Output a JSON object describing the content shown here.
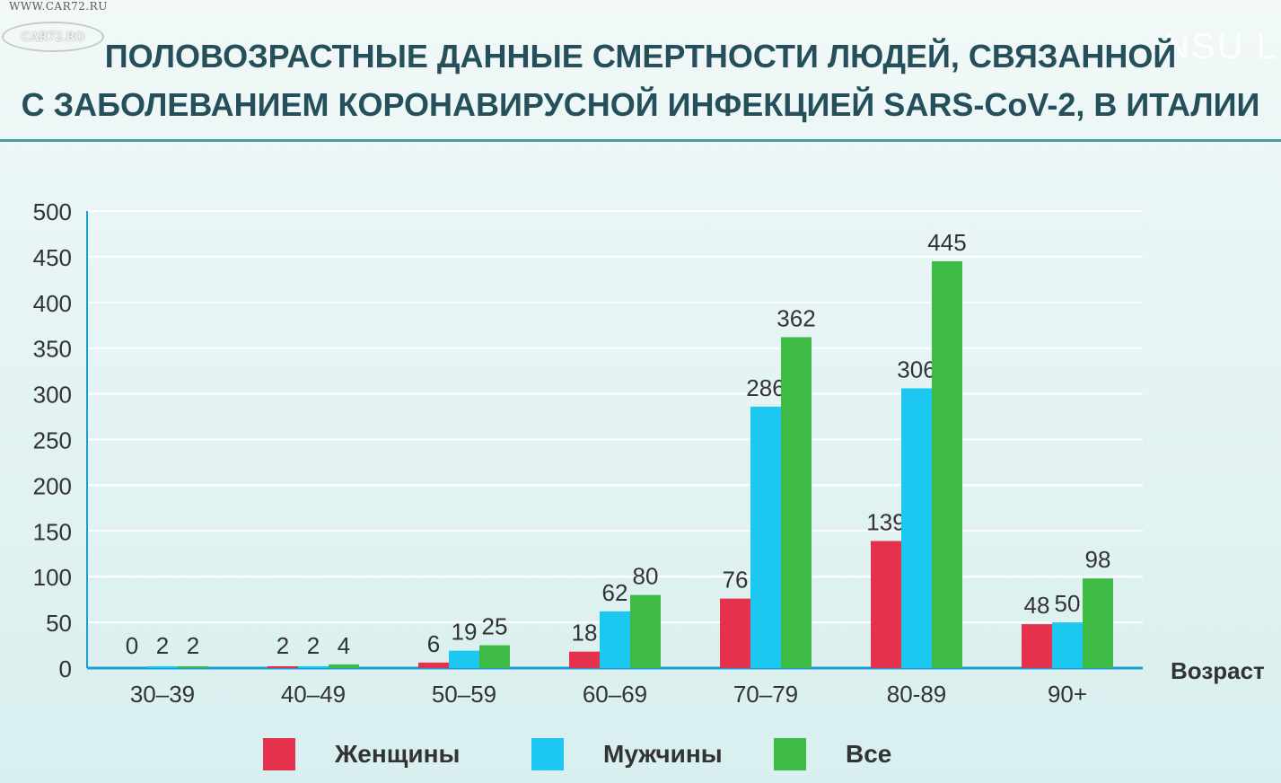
{
  "watermark": {
    "site_top": "WWW.CAR72.RU",
    "logo": "CAR72.RO",
    "corner": "NSU LI"
  },
  "title": {
    "line1": "ПОЛОВОЗРАСТНЫЕ ДАННЫЕ СМЕРТНОСТИ ЛЮДЕЙ, СВЯЗАННОЙ",
    "line2": "С ЗАБОЛЕВАНИЕМ КОРОНАВИРУСНОЙ ИНФЕКЦИЕЙ SARS-CoV-2, В ИТАЛИИ"
  },
  "chart_data": {
    "type": "bar",
    "title": "ПОЛОВОЗРАСТНЫЕ ДАННЫЕ СМЕРТНОСТИ ЛЮДЕЙ, СВЯЗАННОЙ С ЗАБОЛЕВАНИЕМ КОРОНАВИРУСНОЙ ИНФЕКЦИЕЙ SARS-CoV-2, В ИТАЛИИ",
    "xlabel": "Возраст",
    "ylabel": "",
    "ylim": [
      0,
      500
    ],
    "yticks": [
      0,
      50,
      100,
      150,
      200,
      250,
      300,
      350,
      400,
      450,
      500
    ],
    "grid": true,
    "legend_position": "bottom",
    "categories": [
      "30–39",
      "40–49",
      "50–59",
      "60–69",
      "70–79",
      "80-89",
      "90+"
    ],
    "series": [
      {
        "name": "Женщины",
        "color": "#e5314b",
        "values": [
          0,
          2,
          6,
          18,
          76,
          139,
          48
        ]
      },
      {
        "name": "Мужчины",
        "color": "#1cc8f0",
        "values": [
          2,
          2,
          19,
          62,
          286,
          306,
          50
        ]
      },
      {
        "name": "Все",
        "color": "#3dbb45",
        "values": [
          2,
          4,
          25,
          80,
          362,
          445,
          98
        ]
      }
    ]
  }
}
